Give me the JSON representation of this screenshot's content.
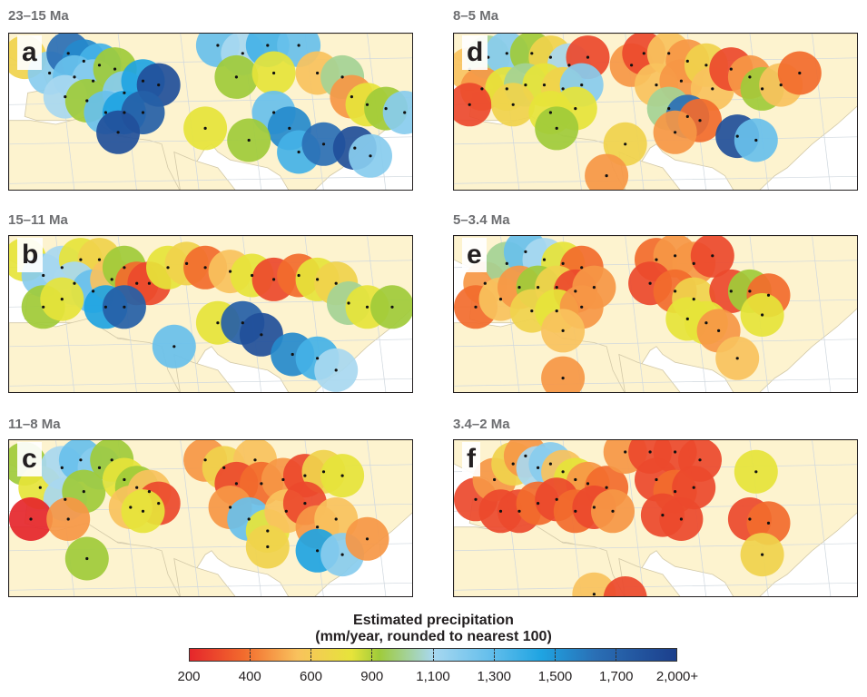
{
  "panels": [
    {
      "letter": "a",
      "time": "23–15 Ma",
      "sites": [
        {
          "lon": -10,
          "lat": 52,
          "mm": 700
        },
        {
          "lon": -2,
          "lat": 48,
          "mm": 1200
        },
        {
          "lon": 4,
          "lat": 53,
          "mm": 1700
        },
        {
          "lon": 9,
          "lat": 51,
          "mm": 1600
        },
        {
          "lon": 14,
          "lat": 50,
          "mm": 1400
        },
        {
          "lon": 6,
          "lat": 47,
          "mm": 1300
        },
        {
          "lon": 12,
          "lat": 46,
          "mm": 1200
        },
        {
          "lon": 19,
          "lat": 49,
          "mm": 900
        },
        {
          "lon": 3,
          "lat": 42,
          "mm": 1100
        },
        {
          "lon": 10,
          "lat": 41,
          "mm": 900
        },
        {
          "lon": 22,
          "lat": 43,
          "mm": 1200
        },
        {
          "lon": 28,
          "lat": 46,
          "mm": 1500
        },
        {
          "lon": 33,
          "lat": 45,
          "mm": 1900
        },
        {
          "lon": 16,
          "lat": 38,
          "mm": 1300
        },
        {
          "lon": 22,
          "lat": 38,
          "mm": 1500
        },
        {
          "lon": 28,
          "lat": 38,
          "mm": 1800
        },
        {
          "lon": 20,
          "lat": 33,
          "mm": 1900
        },
        {
          "lon": 52,
          "lat": 55,
          "mm": 1300
        },
        {
          "lon": 60,
          "lat": 53,
          "mm": 1100
        },
        {
          "lon": 68,
          "lat": 55,
          "mm": 1400
        },
        {
          "lon": 78,
          "lat": 55,
          "mm": 1300
        },
        {
          "lon": 58,
          "lat": 47,
          "mm": 900
        },
        {
          "lon": 70,
          "lat": 48,
          "mm": 800
        },
        {
          "lon": 84,
          "lat": 48,
          "mm": 600
        },
        {
          "lon": 92,
          "lat": 47,
          "mm": 1000
        },
        {
          "lon": 95,
          "lat": 42,
          "mm": 500
        },
        {
          "lon": 100,
          "lat": 40,
          "mm": 800
        },
        {
          "lon": 106,
          "lat": 39,
          "mm": 900
        },
        {
          "lon": 112,
          "lat": 38,
          "mm": 1200
        },
        {
          "lon": 70,
          "lat": 38,
          "mm": 1300
        },
        {
          "lon": 75,
          "lat": 34,
          "mm": 1600
        },
        {
          "lon": 62,
          "lat": 31,
          "mm": 900
        },
        {
          "lon": 48,
          "lat": 34,
          "mm": 800
        },
        {
          "lon": 78,
          "lat": 28,
          "mm": 1400
        },
        {
          "lon": 86,
          "lat": 30,
          "mm": 1700
        },
        {
          "lon": 96,
          "lat": 29,
          "mm": 1900
        },
        {
          "lon": 101,
          "lat": 27,
          "mm": 1200
        }
      ]
    },
    {
      "letter": "b",
      "time": "15–11 Ma",
      "sites": [
        {
          "lon": -10,
          "lat": 52,
          "mm": 800
        },
        {
          "lon": -4,
          "lat": 48,
          "mm": 1200
        },
        {
          "lon": 2,
          "lat": 50,
          "mm": 1100
        },
        {
          "lon": 8,
          "lat": 52,
          "mm": 800
        },
        {
          "lon": 14,
          "lat": 52,
          "mm": 700
        },
        {
          "lon": 6,
          "lat": 46,
          "mm": 1100
        },
        {
          "lon": 12,
          "lat": 44,
          "mm": 1300
        },
        {
          "lon": 18,
          "lat": 47,
          "mm": 600
        },
        {
          "lon": 22,
          "lat": 50,
          "mm": 900
        },
        {
          "lon": 26,
          "lat": 46,
          "mm": 400
        },
        {
          "lon": 30,
          "lat": 46,
          "mm": 300
        },
        {
          "lon": -4,
          "lat": 40,
          "mm": 900
        },
        {
          "lon": 2,
          "lat": 42,
          "mm": 800
        },
        {
          "lon": 16,
          "lat": 40,
          "mm": 1500
        },
        {
          "lon": 22,
          "lat": 40,
          "mm": 1800
        },
        {
          "lon": 36,
          "lat": 50,
          "mm": 800
        },
        {
          "lon": 42,
          "lat": 51,
          "mm": 700
        },
        {
          "lon": 48,
          "lat": 50,
          "mm": 400
        },
        {
          "lon": 56,
          "lat": 49,
          "mm": 600
        },
        {
          "lon": 63,
          "lat": 48,
          "mm": 800
        },
        {
          "lon": 70,
          "lat": 47,
          "mm": 300
        },
        {
          "lon": 78,
          "lat": 48,
          "mm": 400
        },
        {
          "lon": 84,
          "lat": 47,
          "mm": 800
        },
        {
          "lon": 90,
          "lat": 46,
          "mm": 700
        },
        {
          "lon": 94,
          "lat": 41,
          "mm": 1000
        },
        {
          "lon": 100,
          "lat": 40,
          "mm": 800
        },
        {
          "lon": 108,
          "lat": 40,
          "mm": 900
        },
        {
          "lon": 38,
          "lat": 30,
          "mm": 1300
        },
        {
          "lon": 52,
          "lat": 36,
          "mm": 800
        },
        {
          "lon": 60,
          "lat": 36,
          "mm": 1800
        },
        {
          "lon": 66,
          "lat": 33,
          "mm": 1900
        },
        {
          "lon": 76,
          "lat": 28,
          "mm": 1600
        },
        {
          "lon": 84,
          "lat": 27,
          "mm": 1400
        },
        {
          "lon": 90,
          "lat": 24,
          "mm": 1100
        }
      ]
    },
    {
      "letter": "c",
      "time": "11–8 Ma",
      "sites": [
        {
          "lon": -10,
          "lat": 52,
          "mm": 900
        },
        {
          "lon": -5,
          "lat": 46,
          "mm": 800
        },
        {
          "lon": 2,
          "lat": 51,
          "mm": 1100
        },
        {
          "lon": 8,
          "lat": 53,
          "mm": 1300
        },
        {
          "lon": 14,
          "lat": 51,
          "mm": 1200
        },
        {
          "lon": 18,
          "lat": 53,
          "mm": 900
        },
        {
          "lon": 3,
          "lat": 43,
          "mm": 1100
        },
        {
          "lon": 9,
          "lat": 45,
          "mm": 900
        },
        {
          "lon": 22,
          "lat": 48,
          "mm": 800
        },
        {
          "lon": 26,
          "lat": 46,
          "mm": 900
        },
        {
          "lon": 30,
          "lat": 45,
          "mm": 600
        },
        {
          "lon": 33,
          "lat": 42,
          "mm": 300
        },
        {
          "lon": 24,
          "lat": 41,
          "mm": 600
        },
        {
          "lon": 28,
          "lat": 40,
          "mm": 800
        },
        {
          "lon": -8,
          "lat": 38,
          "mm": 200
        },
        {
          "lon": 4,
          "lat": 38,
          "mm": 500
        },
        {
          "lon": 10,
          "lat": 28,
          "mm": 900
        },
        {
          "lon": 48,
          "lat": 53,
          "mm": 500
        },
        {
          "lon": 54,
          "lat": 51,
          "mm": 700
        },
        {
          "lon": 64,
          "lat": 53,
          "mm": 600
        },
        {
          "lon": 58,
          "lat": 47,
          "mm": 300
        },
        {
          "lon": 66,
          "lat": 47,
          "mm": 400
        },
        {
          "lon": 73,
          "lat": 48,
          "mm": 500
        },
        {
          "lon": 80,
          "lat": 49,
          "mm": 300
        },
        {
          "lon": 86,
          "lat": 50,
          "mm": 700
        },
        {
          "lon": 92,
          "lat": 49,
          "mm": 800
        },
        {
          "lon": 56,
          "lat": 41,
          "mm": 500
        },
        {
          "lon": 62,
          "lat": 38,
          "mm": 1300
        },
        {
          "lon": 68,
          "lat": 35,
          "mm": 800
        },
        {
          "lon": 74,
          "lat": 40,
          "mm": 600
        },
        {
          "lon": 80,
          "lat": 42,
          "mm": 300
        },
        {
          "lon": 84,
          "lat": 36,
          "mm": 500
        },
        {
          "lon": 90,
          "lat": 38,
          "mm": 600
        },
        {
          "lon": 68,
          "lat": 31,
          "mm": 700
        },
        {
          "lon": 84,
          "lat": 30,
          "mm": 1500
        },
        {
          "lon": 92,
          "lat": 29,
          "mm": 1200
        },
        {
          "lon": 100,
          "lat": 33,
          "mm": 500
        }
      ]
    },
    {
      "letter": "d",
      "time": "8–5 Ma",
      "sites": [
        {
          "lon": -10,
          "lat": 49,
          "mm": 600
        },
        {
          "lon": -4,
          "lat": 52,
          "mm": 1000
        },
        {
          "lon": 2,
          "lat": 53,
          "mm": 1200
        },
        {
          "lon": 10,
          "lat": 53,
          "mm": 900
        },
        {
          "lon": 16,
          "lat": 52,
          "mm": 700
        },
        {
          "lon": 22,
          "lat": 50,
          "mm": 1100
        },
        {
          "lon": 28,
          "lat": 52,
          "mm": 300
        },
        {
          "lon": -6,
          "lat": 44,
          "mm": 500
        },
        {
          "lon": 2,
          "lat": 44,
          "mm": 800
        },
        {
          "lon": 8,
          "lat": 45,
          "mm": 1000
        },
        {
          "lon": 14,
          "lat": 45,
          "mm": 800
        },
        {
          "lon": 20,
          "lat": 44,
          "mm": 700
        },
        {
          "lon": 26,
          "lat": 45,
          "mm": 1200
        },
        {
          "lon": -10,
          "lat": 40,
          "mm": 300
        },
        {
          "lon": 4,
          "lat": 40,
          "mm": 700
        },
        {
          "lon": 16,
          "lat": 38,
          "mm": 800
        },
        {
          "lon": 24,
          "lat": 39,
          "mm": 800
        },
        {
          "lon": 18,
          "lat": 34,
          "mm": 900
        },
        {
          "lon": 42,
          "lat": 50,
          "mm": 500
        },
        {
          "lon": 46,
          "lat": 53,
          "mm": 300
        },
        {
          "lon": 54,
          "lat": 53,
          "mm": 600
        },
        {
          "lon": 60,
          "lat": 51,
          "mm": 500
        },
        {
          "lon": 50,
          "lat": 45,
          "mm": 600
        },
        {
          "lon": 58,
          "lat": 46,
          "mm": 500
        },
        {
          "lon": 66,
          "lat": 50,
          "mm": 700
        },
        {
          "lon": 68,
          "lat": 44,
          "mm": 600
        },
        {
          "lon": 74,
          "lat": 49,
          "mm": 300
        },
        {
          "lon": 80,
          "lat": 47,
          "mm": 500
        },
        {
          "lon": 84,
          "lat": 44,
          "mm": 900
        },
        {
          "lon": 90,
          "lat": 45,
          "mm": 600
        },
        {
          "lon": 96,
          "lat": 48,
          "mm": 400
        },
        {
          "lon": 54,
          "lat": 39,
          "mm": 1000
        },
        {
          "lon": 60,
          "lat": 37,
          "mm": 1700
        },
        {
          "lon": 64,
          "lat": 36,
          "mm": 400
        },
        {
          "lon": 56,
          "lat": 33,
          "mm": 500
        },
        {
          "lon": 76,
          "lat": 32,
          "mm": 1900
        },
        {
          "lon": 82,
          "lat": 31,
          "mm": 1300
        },
        {
          "lon": 40,
          "lat": 30,
          "mm": 700
        },
        {
          "lon": 34,
          "lat": 22,
          "mm": 500
        }
      ]
    },
    {
      "letter": "e",
      "time": "5–3.4 Ma",
      "sites": [
        {
          "lon": -5,
          "lat": 46,
          "mm": 500
        },
        {
          "lon": 2,
          "lat": 51,
          "mm": 1000
        },
        {
          "lon": 8,
          "lat": 54,
          "mm": 1300
        },
        {
          "lon": 14,
          "lat": 52,
          "mm": 1100
        },
        {
          "lon": 20,
          "lat": 51,
          "mm": 800
        },
        {
          "lon": 26,
          "lat": 50,
          "mm": 400
        },
        {
          "lon": -8,
          "lat": 40,
          "mm": 400
        },
        {
          "lon": 0,
          "lat": 42,
          "mm": 600
        },
        {
          "lon": 6,
          "lat": 45,
          "mm": 500
        },
        {
          "lon": 12,
          "lat": 45,
          "mm": 900
        },
        {
          "lon": 18,
          "lat": 45,
          "mm": 700
        },
        {
          "lon": 24,
          "lat": 44,
          "mm": 300
        },
        {
          "lon": 30,
          "lat": 45,
          "mm": 500
        },
        {
          "lon": 10,
          "lat": 39,
          "mm": 700
        },
        {
          "lon": 18,
          "lat": 39,
          "mm": 800
        },
        {
          "lon": 26,
          "lat": 40,
          "mm": 500
        },
        {
          "lon": 20,
          "lat": 34,
          "mm": 600
        },
        {
          "lon": 50,
          "lat": 52,
          "mm": 400
        },
        {
          "lon": 56,
          "lat": 53,
          "mm": 500
        },
        {
          "lon": 62,
          "lat": 51,
          "mm": 500
        },
        {
          "lon": 68,
          "lat": 53,
          "mm": 300
        },
        {
          "lon": 48,
          "lat": 46,
          "mm": 300
        },
        {
          "lon": 56,
          "lat": 44,
          "mm": 400
        },
        {
          "lon": 62,
          "lat": 42,
          "mm": 700
        },
        {
          "lon": 74,
          "lat": 44,
          "mm": 300
        },
        {
          "lon": 80,
          "lat": 44,
          "mm": 900
        },
        {
          "lon": 86,
          "lat": 43,
          "mm": 400
        },
        {
          "lon": 84,
          "lat": 38,
          "mm": 800
        },
        {
          "lon": 60,
          "lat": 37,
          "mm": 800
        },
        {
          "lon": 66,
          "lat": 36,
          "mm": 800
        },
        {
          "lon": 70,
          "lat": 34,
          "mm": 500
        },
        {
          "lon": 76,
          "lat": 27,
          "mm": 600
        },
        {
          "lon": 20,
          "lat": 22,
          "mm": 500
        }
      ]
    },
    {
      "letter": "f",
      "time": "3.4–2 Ma",
      "sites": [
        {
          "lon": -8,
          "lat": 43,
          "mm": 300
        },
        {
          "lon": -2,
          "lat": 48,
          "mm": 500
        },
        {
          "lon": 4,
          "lat": 52,
          "mm": 700
        },
        {
          "lon": 8,
          "lat": 54,
          "mm": 500
        },
        {
          "lon": 12,
          "lat": 51,
          "mm": 1100
        },
        {
          "lon": 16,
          "lat": 52,
          "mm": 1200
        },
        {
          "lon": 20,
          "lat": 50,
          "mm": 600
        },
        {
          "lon": 24,
          "lat": 48,
          "mm": 800
        },
        {
          "lon": 28,
          "lat": 47,
          "mm": 500
        },
        {
          "lon": 34,
          "lat": 46,
          "mm": 400
        },
        {
          "lon": 0,
          "lat": 40,
          "mm": 300
        },
        {
          "lon": 6,
          "lat": 40,
          "mm": 300
        },
        {
          "lon": 12,
          "lat": 42,
          "mm": 400
        },
        {
          "lon": 18,
          "lat": 43,
          "mm": 300
        },
        {
          "lon": 24,
          "lat": 40,
          "mm": 400
        },
        {
          "lon": 30,
          "lat": 41,
          "mm": 300
        },
        {
          "lon": 36,
          "lat": 40,
          "mm": 500
        },
        {
          "lon": 40,
          "lat": 55,
          "mm": 500
        },
        {
          "lon": 48,
          "lat": 55,
          "mm": 300
        },
        {
          "lon": 56,
          "lat": 55,
          "mm": 300
        },
        {
          "lon": 64,
          "lat": 53,
          "mm": 300
        },
        {
          "lon": 50,
          "lat": 48,
          "mm": 300
        },
        {
          "lon": 56,
          "lat": 45,
          "mm": 400
        },
        {
          "lon": 62,
          "lat": 46,
          "mm": 300
        },
        {
          "lon": 52,
          "lat": 39,
          "mm": 300
        },
        {
          "lon": 58,
          "lat": 38,
          "mm": 300
        },
        {
          "lon": 82,
          "lat": 50,
          "mm": 800
        },
        {
          "lon": 80,
          "lat": 38,
          "mm": 300
        },
        {
          "lon": 86,
          "lat": 37,
          "mm": 400
        },
        {
          "lon": 84,
          "lat": 29,
          "mm": 700
        },
        {
          "lon": 30,
          "lat": 19,
          "mm": 600
        },
        {
          "lon": 40,
          "lat": 18,
          "mm": 300
        }
      ]
    }
  ],
  "legend": {
    "title_line1": "Estimated precipitation",
    "title_line2": "(mm/year, rounded to nearest 100)",
    "tick_labels": [
      "200",
      "400",
      "600",
      "900",
      "1,100",
      "1,300",
      "1,500",
      "1,700",
      "2,000+"
    ],
    "stops": [
      {
        "mm": 200,
        "color": "#e5262b"
      },
      {
        "mm": 400,
        "color": "#f26b2d"
      },
      {
        "mm": 600,
        "color": "#f9c25d"
      },
      {
        "mm": 800,
        "color": "#e6e43a"
      },
      {
        "mm": 900,
        "color": "#9fcb3a"
      },
      {
        "mm": 1100,
        "color": "#a8d8f0"
      },
      {
        "mm": 1300,
        "color": "#68c0ec"
      },
      {
        "mm": 1500,
        "color": "#1fa4e2"
      },
      {
        "mm": 1700,
        "color": "#2a6fb5"
      },
      {
        "mm": 2000,
        "color": "#1c3f8c"
      }
    ]
  },
  "map_style": {
    "land": "#fdf3cf",
    "sea": "#ffffff",
    "graticule": "#cfd7de",
    "border": "#d3c9a8",
    "dot": "#111111"
  }
}
